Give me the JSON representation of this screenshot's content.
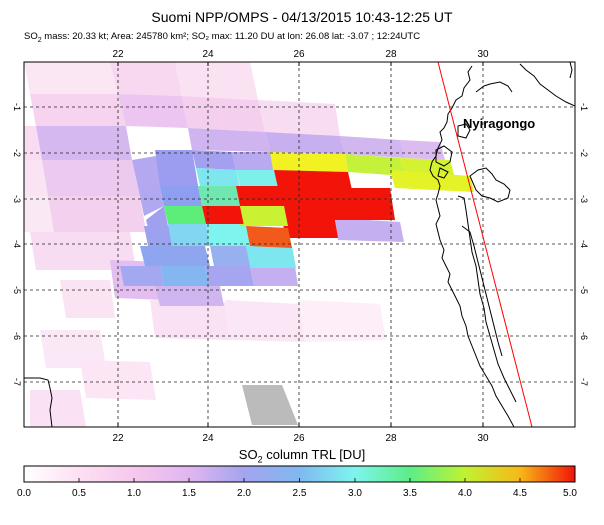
{
  "header": {
    "title": "Suomi NPP/OMPS - 04/13/2015 10:43-12:25 UT",
    "stats_so": "SO",
    "stats_sub": "2",
    "stats_rest": " mass: 20.33 kt; Area: 245780 km²; SO₂ max: 11.20 DU at lon: 26.08 lat: -3.07 ; 12:24UTC"
  },
  "map": {
    "lon_ticks": [
      "22",
      "24",
      "26",
      "28",
      "30"
    ],
    "lat_ticks": [
      "-1",
      "-2",
      "-3",
      "-4",
      "-5",
      "-6",
      "-7"
    ],
    "volcano_label": "Nyiragongo"
  },
  "colorbar": {
    "label_main": "SO",
    "label_sub": "2",
    "label_rest": " column TRL [DU]",
    "ticks": [
      "0.0",
      "0.5",
      "1.0",
      "1.5",
      "2.0",
      "2.5",
      "3.0",
      "3.5",
      "4.0",
      "4.5",
      "5.0"
    ],
    "colors": [
      "#ffffff",
      "#fce0f2",
      "#f6c8ee",
      "#e0b6f0",
      "#b6a8ef",
      "#8ea0f0",
      "#80c8f2",
      "#7ef4ee",
      "#5cee88",
      "#b0f242",
      "#f2f222",
      "#f8b818",
      "#f26222",
      "#f21408"
    ]
  }
}
